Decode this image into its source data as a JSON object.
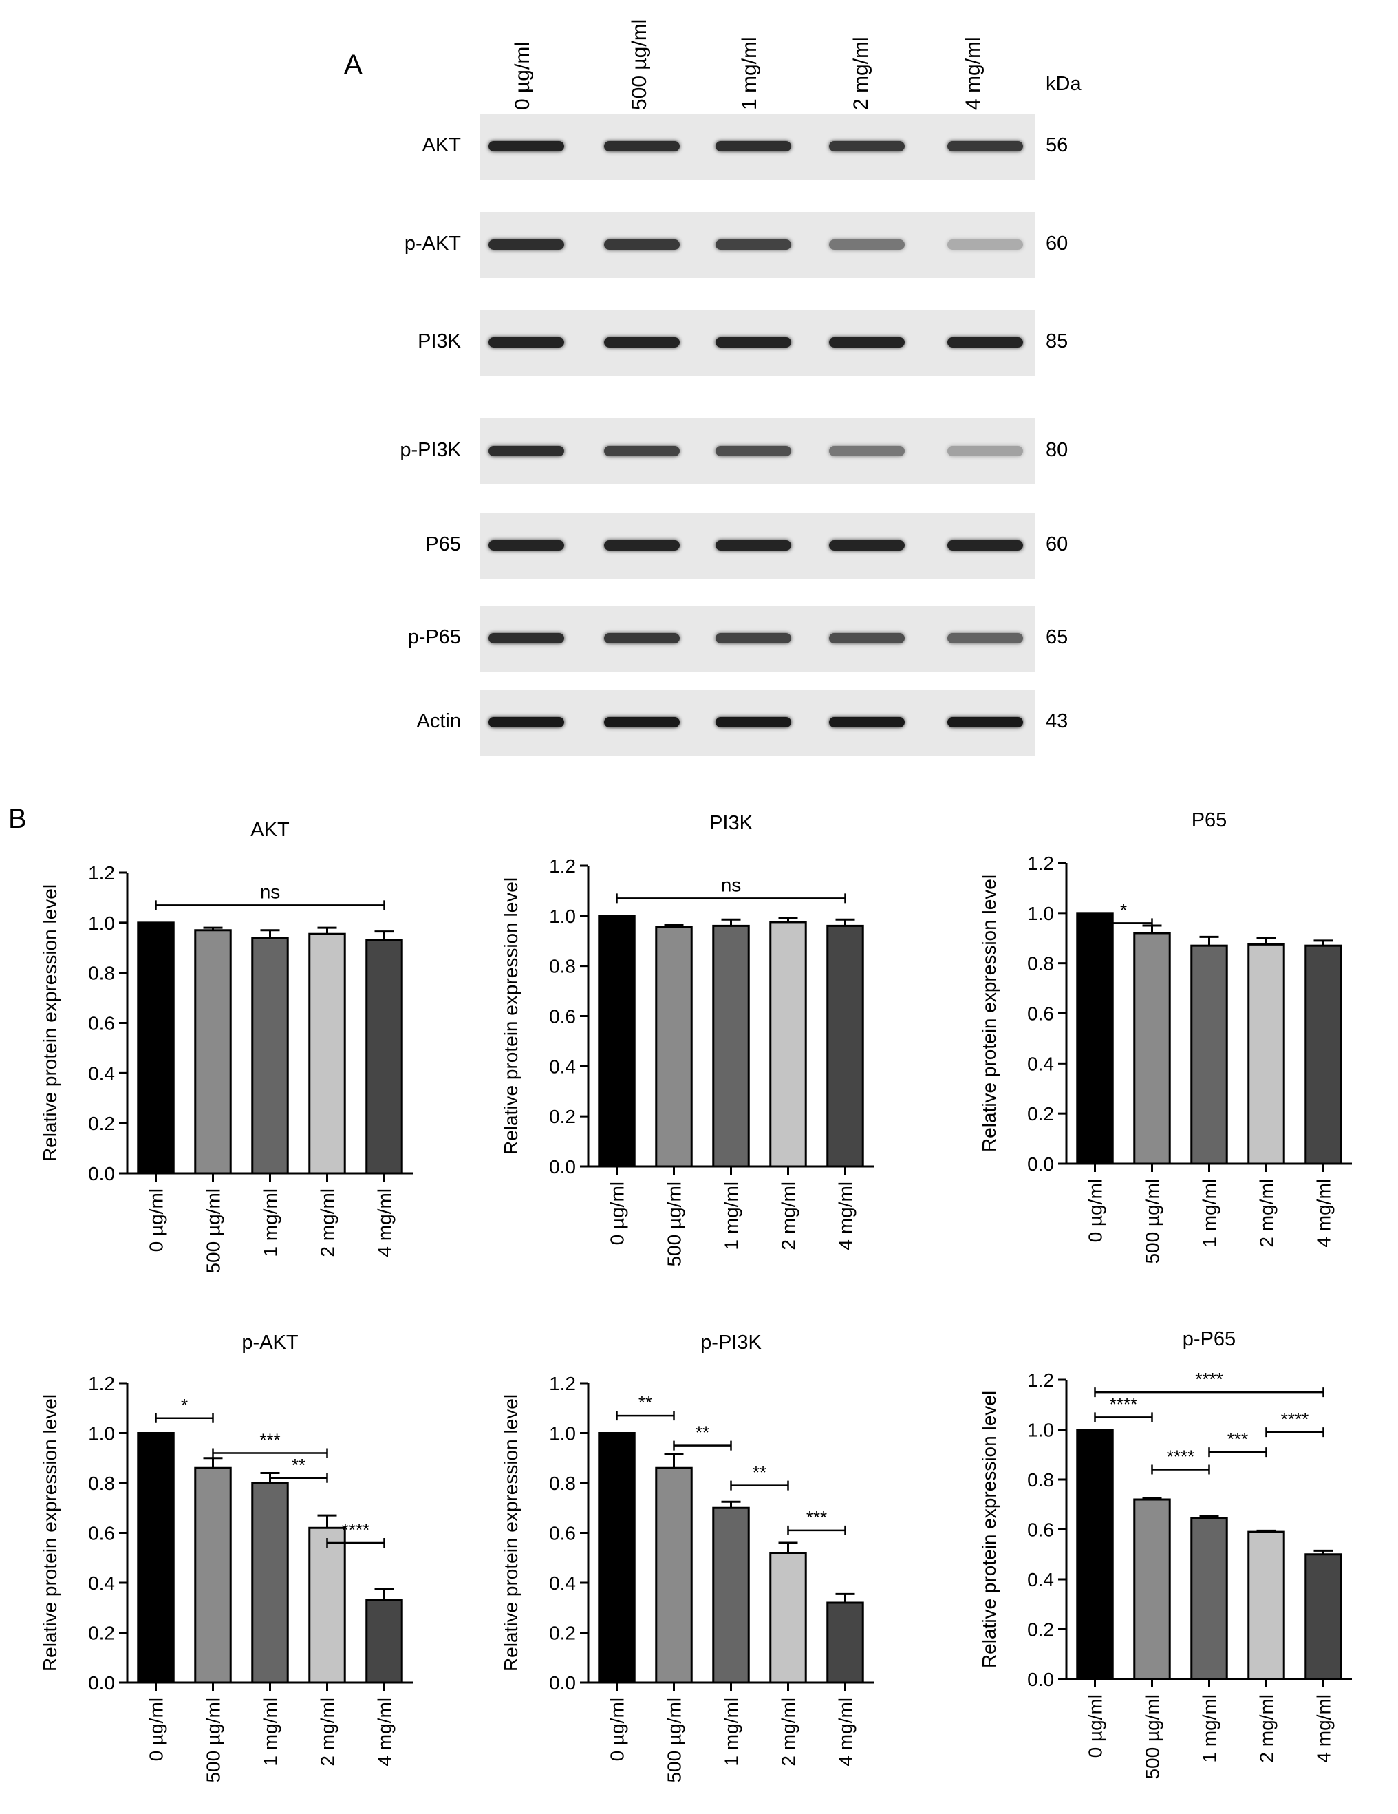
{
  "panel_a": {
    "letter": "A",
    "kda_label": "kDa",
    "lanes": [
      "0 µg/ml",
      "500 µg/ml",
      "1 mg/ml",
      "2 mg/ml",
      "4 mg/ml"
    ],
    "blots": [
      {
        "protein": "AKT",
        "kda": "56",
        "intensities": [
          0.95,
          0.9,
          0.9,
          0.85,
          0.85
        ]
      },
      {
        "protein": "p-AKT",
        "kda": "60",
        "intensities": [
          0.9,
          0.85,
          0.8,
          0.55,
          0.3
        ]
      },
      {
        "protein": "PI3K",
        "kda": "85",
        "intensities": [
          0.95,
          0.95,
          0.95,
          0.95,
          0.95
        ]
      },
      {
        "protein": "p-PI3K",
        "kda": "80",
        "intensities": [
          0.9,
          0.8,
          0.75,
          0.55,
          0.35
        ]
      },
      {
        "protein": "P65",
        "kda": "60",
        "intensities": [
          0.95,
          0.95,
          0.95,
          0.95,
          0.95
        ]
      },
      {
        "protein": "p-P65",
        "kda": "65",
        "intensities": [
          0.9,
          0.85,
          0.8,
          0.75,
          0.65
        ]
      },
      {
        "protein": "Actin",
        "kda": "43",
        "intensities": [
          1,
          1,
          1,
          1,
          1
        ]
      }
    ]
  },
  "panel_b": {
    "letter": "B"
  },
  "chart_data": [
    {
      "type": "bar",
      "title": "AKT",
      "ylabel": "Relative protein expression level",
      "categories": [
        "0 µg/ml",
        "500 µg/ml",
        "1 mg/ml",
        "2 mg/ml",
        "4 mg/ml"
      ],
      "values": [
        1.0,
        0.97,
        0.94,
        0.955,
        0.93
      ],
      "errors": [
        0,
        0.01,
        0.03,
        0.025,
        0.035
      ],
      "ylim": [
        0,
        1.2
      ],
      "yticks": [
        "0.0",
        "0.2",
        "0.4",
        "0.6",
        "0.8",
        "1.0",
        "1.2"
      ],
      "annotations": [
        {
          "from": 0,
          "to": 4,
          "y": 1.07,
          "label": "ns"
        }
      ]
    },
    {
      "type": "bar",
      "title": "PI3K",
      "ylabel": "Relative protein expression level",
      "categories": [
        "0 µg/ml",
        "500 µg/ml",
        "1 mg/ml",
        "2 mg/ml",
        "4 mg/ml"
      ],
      "values": [
        1.0,
        0.955,
        0.96,
        0.975,
        0.96
      ],
      "errors": [
        0,
        0.01,
        0.025,
        0.015,
        0.025
      ],
      "ylim": [
        0,
        1.2
      ],
      "yticks": [
        "0.0",
        "0.2",
        "0.4",
        "0.6",
        "0.8",
        "1.0",
        "1.2"
      ],
      "annotations": [
        {
          "from": 0,
          "to": 4,
          "y": 1.07,
          "label": "ns"
        }
      ]
    },
    {
      "type": "bar",
      "title": "P65",
      "ylabel": "Relative protein expression level",
      "categories": [
        "0 µg/ml",
        "500 µg/ml",
        "1 mg/ml",
        "2 mg/ml",
        "4 mg/ml"
      ],
      "values": [
        1.0,
        0.92,
        0.87,
        0.875,
        0.87
      ],
      "errors": [
        0,
        0.03,
        0.035,
        0.025,
        0.02
      ],
      "ylim": [
        0,
        1.2
      ],
      "yticks": [
        "0.0",
        "0.2",
        "0.4",
        "0.6",
        "0.8",
        "1.0",
        "1.2"
      ],
      "annotations": [
        {
          "from": 0,
          "to": 1,
          "y": 0.96,
          "label": "*"
        }
      ]
    },
    {
      "type": "bar",
      "title": "p-AKT",
      "ylabel": "Relative protein expression level",
      "categories": [
        "0 µg/ml",
        "500 µg/ml",
        "1 mg/ml",
        "2 mg/ml",
        "4 mg/ml"
      ],
      "values": [
        1.0,
        0.86,
        0.8,
        0.62,
        0.33
      ],
      "errors": [
        0,
        0.04,
        0.04,
        0.05,
        0.045
      ],
      "ylim": [
        0,
        1.2
      ],
      "yticks": [
        "0.0",
        "0.2",
        "0.4",
        "0.6",
        "0.8",
        "1.0",
        "1.2"
      ],
      "annotations": [
        {
          "from": 0,
          "to": 1,
          "y": 1.06,
          "label": "*"
        },
        {
          "from": 1,
          "to": 3,
          "y": 0.92,
          "label": "***"
        },
        {
          "from": 2,
          "to": 3,
          "y": 0.82,
          "label": "**"
        },
        {
          "from": 3,
          "to": 4,
          "y": 0.56,
          "label": "****"
        }
      ]
    },
    {
      "type": "bar",
      "title": "p-PI3K",
      "ylabel": "Relative protein expression level",
      "categories": [
        "0 µg/ml",
        "500 µg/ml",
        "1 mg/ml",
        "2 mg/ml",
        "4 mg/ml"
      ],
      "values": [
        1.0,
        0.86,
        0.7,
        0.52,
        0.32
      ],
      "errors": [
        0,
        0.055,
        0.025,
        0.04,
        0.035
      ],
      "ylim": [
        0,
        1.2
      ],
      "yticks": [
        "0.0",
        "0.2",
        "0.4",
        "0.6",
        "0.8",
        "1.0",
        "1.2"
      ],
      "annotations": [
        {
          "from": 0,
          "to": 1,
          "y": 1.07,
          "label": "**"
        },
        {
          "from": 1,
          "to": 2,
          "y": 0.95,
          "label": "**"
        },
        {
          "from": 2,
          "to": 3,
          "y": 0.79,
          "label": "**"
        },
        {
          "from": 3,
          "to": 4,
          "y": 0.61,
          "label": "***"
        }
      ]
    },
    {
      "type": "bar",
      "title": "p-P65",
      "ylabel": "Relative protein expression level",
      "categories": [
        "0 µg/ml",
        "500 µg/ml",
        "1 mg/ml",
        "2 mg/ml",
        "4 mg/ml"
      ],
      "values": [
        1.0,
        0.72,
        0.645,
        0.59,
        0.5
      ],
      "errors": [
        0,
        0.005,
        0.01,
        0.005,
        0.015
      ],
      "ylim": [
        0,
        1.2
      ],
      "yticks": [
        "0.0",
        "0.2",
        "0.4",
        "0.6",
        "0.8",
        "1.0",
        "1.2"
      ],
      "annotations": [
        {
          "from": 0,
          "to": 4,
          "y": 1.15,
          "label": "****"
        },
        {
          "from": 0,
          "to": 1,
          "y": 1.05,
          "label": "****"
        },
        {
          "from": 1,
          "to": 2,
          "y": 0.84,
          "label": "****"
        },
        {
          "from": 2,
          "to": 3,
          "y": 0.91,
          "label": "***"
        },
        {
          "from": 3,
          "to": 4,
          "y": 0.99,
          "label": "****"
        }
      ]
    }
  ]
}
